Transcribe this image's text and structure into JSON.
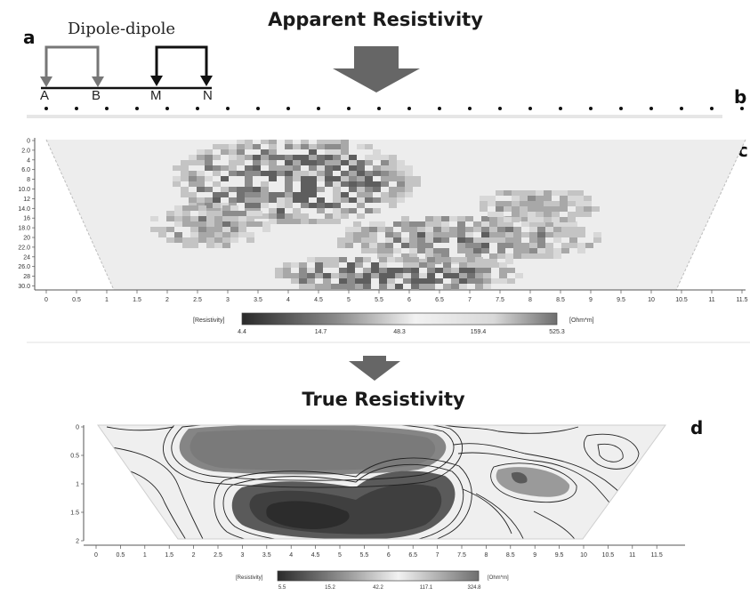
{
  "panel_labels": {
    "a": "a",
    "b": "b",
    "c": "c",
    "d": "d"
  },
  "titles": {
    "apparent": "Apparent Resistivity",
    "true": "True Resistivity"
  },
  "array": {
    "name": "Dipole-dipole",
    "electrodes": [
      "A",
      "B",
      "M",
      "N"
    ]
  },
  "apparent_section": {
    "depth_ticks": [
      "0",
      "2.0",
      "4",
      "6.0",
      "8",
      "10.0",
      "12",
      "14.0",
      "16",
      "18.0",
      "20",
      "22.0",
      "24",
      "26.0",
      "28",
      "30.0"
    ],
    "x_ticks": [
      "0",
      "0.5",
      "1",
      "1.5",
      "2",
      "2.5",
      "3",
      "3.5",
      "4",
      "4.5",
      "5",
      "5.5",
      "6",
      "6.5",
      "7",
      "7.5",
      "8",
      "8.5",
      "9",
      "9.5",
      "10",
      "10.5",
      "11",
      "11.5"
    ],
    "colorbar": {
      "label": "[Resistivity]",
      "unit": "[Ohm*m]",
      "ticks": [
        "4.4",
        "14.7",
        "48.3",
        "159.4",
        "525.3"
      ]
    }
  },
  "true_section": {
    "depth_ticks": [
      "0",
      "0.5",
      "1",
      "1.5",
      "2"
    ],
    "x_ticks": [
      "0",
      "0.5",
      "1",
      "1.5",
      "2",
      "2.5",
      "3",
      "3.5",
      "4",
      "4.5",
      "5",
      "5.5",
      "6",
      "6.5",
      "7",
      "7.5",
      "8",
      "8.5",
      "9",
      "9.5",
      "10",
      "10.5",
      "11",
      "11.5"
    ],
    "colorbar": {
      "label": "[Resistivity]",
      "unit": "[Ohm*m]",
      "ticks": [
        "5.5",
        "15.2",
        "42.2",
        "117.1",
        "324.8"
      ]
    }
  },
  "colors": {
    "arrow_grey": "#666666",
    "low_resistivity": "#2e2e2e",
    "high_resistivity": "#f4f4f4"
  }
}
